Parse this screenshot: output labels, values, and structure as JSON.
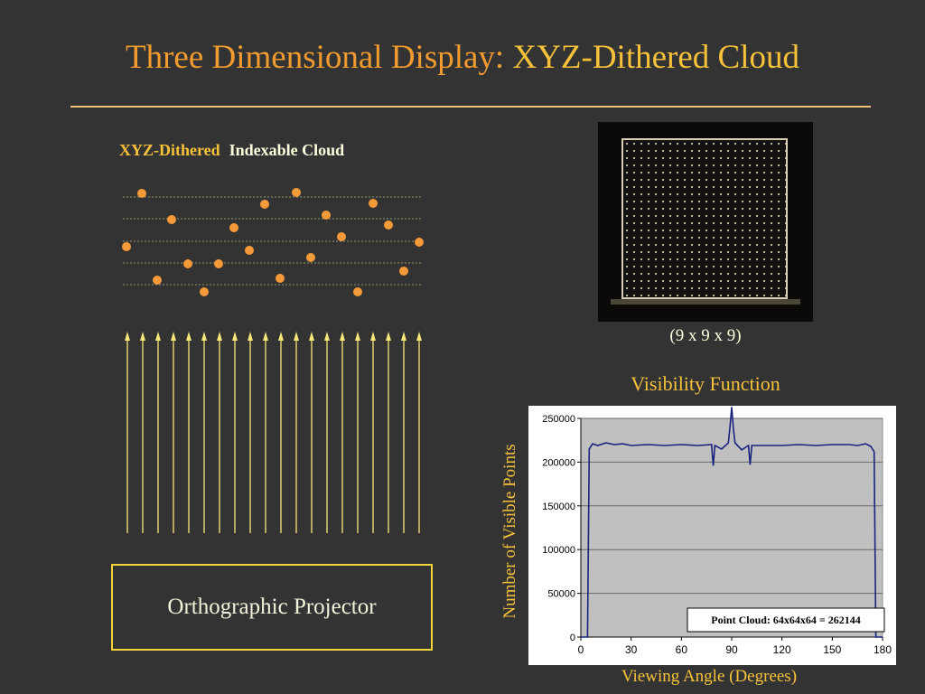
{
  "title": {
    "part1": "Three Dimensional Display:",
    "part2": "XYZ-Dithered Cloud"
  },
  "cloud_label": {
    "part1": "XYZ-Dithered",
    "part2": "Indexable Cloud"
  },
  "projector_label": "Orthographic Projector",
  "photo_caption": "(9 x 9 x 9)",
  "colors": {
    "dot": "#F59A38",
    "arrow": "#F7E87A",
    "accent": "#F7C23A",
    "series": "#1A237E"
  },
  "chart_data": {
    "type": "line",
    "title": "Visibility Function",
    "xlabel": "Viewing Angle (Degrees)",
    "ylabel": "Number of Visible Points",
    "xlim": [
      0,
      180
    ],
    "ylim": [
      0,
      250000
    ],
    "xticks": [
      0,
      30,
      60,
      90,
      120,
      150,
      180
    ],
    "yticks": [
      0,
      50000,
      100000,
      150000,
      200000,
      250000
    ],
    "grid": "horizontal",
    "annotation": "Point Cloud: 64x64x64 = 262144",
    "series": [
      {
        "x": [
          0,
          3,
          4,
          5,
          7,
          10,
          15,
          20,
          25,
          30,
          40,
          50,
          60,
          70,
          78,
          79,
          80,
          84,
          88,
          89,
          90,
          91,
          92,
          96,
          100,
          101,
          102,
          110,
          120,
          130,
          140,
          150,
          160,
          165,
          170,
          173,
          175,
          176,
          177,
          180
        ],
        "values": [
          0,
          0,
          0,
          215000,
          221000,
          219000,
          222000,
          220000,
          221000,
          219000,
          220000,
          219000,
          220000,
          219000,
          220000,
          196000,
          219000,
          215000,
          222000,
          240000,
          263000,
          238000,
          222000,
          214000,
          219000,
          197000,
          219000,
          219000,
          219000,
          220000,
          219000,
          220000,
          220000,
          219000,
          221000,
          218000,
          212000,
          0,
          0,
          0
        ]
      }
    ]
  }
}
